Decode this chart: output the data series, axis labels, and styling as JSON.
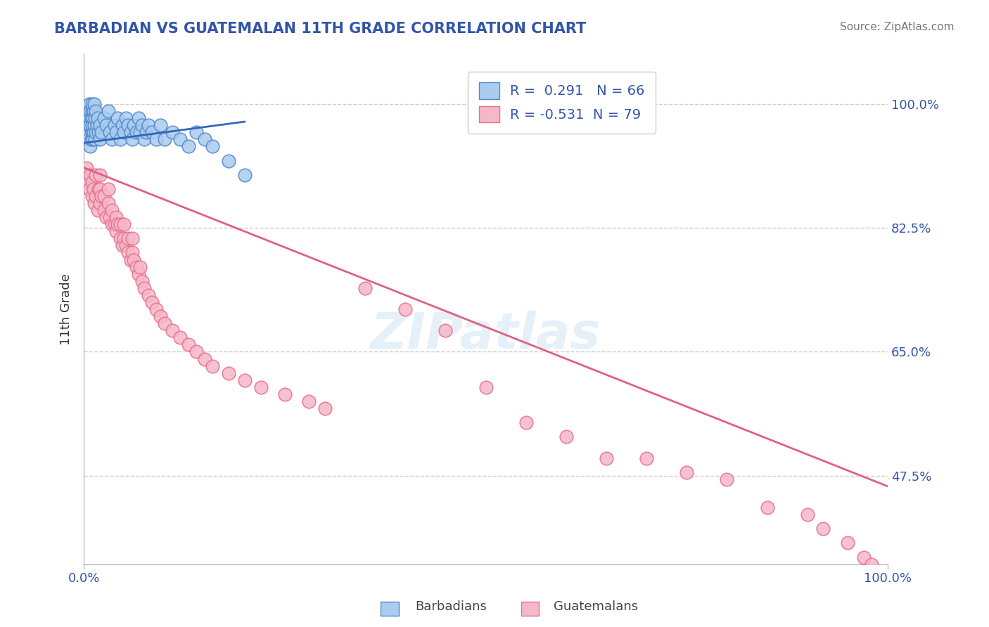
{
  "title": "BARBADIAN VS GUATEMALAN 11TH GRADE CORRELATION CHART",
  "source_text": "Source: ZipAtlas.com",
  "ylabel": "11th Grade",
  "y_ticks": [
    47.5,
    65.0,
    82.5,
    100.0
  ],
  "y_tick_labels": [
    "47.5%",
    "65.0%",
    "82.5%",
    "100.0%"
  ],
  "x_range": [
    0.0,
    100.0
  ],
  "y_range": [
    35.0,
    107.0
  ],
  "blue_R": 0.291,
  "blue_N": 66,
  "pink_R": -0.531,
  "pink_N": 79,
  "blue_color": "#aaccee",
  "blue_edge_color": "#5588cc",
  "pink_color": "#f5b8c8",
  "pink_edge_color": "#e87090",
  "blue_line_color": "#3366bb",
  "pink_line_color": "#e06080",
  "blue_scatter_x": [
    0.3,
    0.5,
    0.5,
    0.6,
    0.7,
    0.7,
    0.8,
    0.8,
    0.8,
    0.9,
    0.9,
    1.0,
    1.0,
    1.0,
    1.0,
    1.1,
    1.1,
    1.2,
    1.2,
    1.3,
    1.3,
    1.4,
    1.4,
    1.5,
    1.5,
    1.6,
    1.7,
    1.8,
    2.0,
    2.0,
    2.2,
    2.5,
    2.8,
    3.0,
    3.2,
    3.5,
    3.8,
    4.0,
    4.2,
    4.5,
    4.8,
    5.0,
    5.2,
    5.5,
    5.8,
    6.0,
    6.2,
    6.5,
    6.8,
    7.0,
    7.2,
    7.5,
    7.8,
    8.0,
    8.5,
    9.0,
    9.5,
    10.0,
    11.0,
    12.0,
    13.0,
    14.0,
    15.0,
    16.0,
    18.0,
    20.0
  ],
  "blue_scatter_y": [
    96,
    97,
    99,
    95,
    98,
    100,
    94,
    97,
    99,
    95,
    98,
    96,
    97,
    99,
    100,
    95,
    98,
    96,
    99,
    97,
    100,
    95,
    98,
    96,
    99,
    97,
    98,
    96,
    95,
    97,
    96,
    98,
    97,
    99,
    96,
    95,
    97,
    96,
    98,
    95,
    97,
    96,
    98,
    97,
    96,
    95,
    97,
    96,
    98,
    96,
    97,
    95,
    96,
    97,
    96,
    95,
    97,
    95,
    96,
    95,
    94,
    96,
    95,
    94,
    92,
    90
  ],
  "pink_scatter_x": [
    0.3,
    0.5,
    0.7,
    0.8,
    1.0,
    1.0,
    1.2,
    1.3,
    1.5,
    1.5,
    1.7,
    1.8,
    2.0,
    2.0,
    2.0,
    2.2,
    2.5,
    2.5,
    2.8,
    3.0,
    3.0,
    3.2,
    3.5,
    3.5,
    3.8,
    4.0,
    4.0,
    4.2,
    4.5,
    4.5,
    4.8,
    5.0,
    5.0,
    5.2,
    5.5,
    5.5,
    5.8,
    6.0,
    6.0,
    6.2,
    6.5,
    6.8,
    7.0,
    7.2,
    7.5,
    8.0,
    8.5,
    9.0,
    9.5,
    10.0,
    11.0,
    12.0,
    13.0,
    14.0,
    15.0,
    16.0,
    18.0,
    20.0,
    22.0,
    25.0,
    28.0,
    30.0,
    35.0,
    40.0,
    45.0,
    50.0,
    55.0,
    60.0,
    65.0,
    70.0,
    75.0,
    80.0,
    85.0,
    90.0,
    92.0,
    95.0,
    97.0,
    98.0,
    99.0
  ],
  "pink_scatter_y": [
    91,
    89,
    88,
    90,
    87,
    89,
    88,
    86,
    87,
    90,
    85,
    88,
    86,
    88,
    90,
    87,
    85,
    87,
    84,
    86,
    88,
    84,
    83,
    85,
    83,
    82,
    84,
    83,
    81,
    83,
    80,
    81,
    83,
    80,
    79,
    81,
    78,
    79,
    81,
    78,
    77,
    76,
    77,
    75,
    74,
    73,
    72,
    71,
    70,
    69,
    68,
    67,
    66,
    65,
    64,
    63,
    62,
    61,
    60,
    59,
    58,
    57,
    74,
    71,
    68,
    60,
    55,
    53,
    50,
    50,
    48,
    47,
    43,
    42,
    40,
    38,
    36,
    35,
    33
  ],
  "blue_trend_x": [
    0.0,
    20.0
  ],
  "blue_trend_y": [
    94.5,
    97.5
  ],
  "pink_trend_x": [
    0.0,
    100.0
  ],
  "pink_trend_y": [
    91.0,
    46.0
  ],
  "watermark_text": "ZIPatlas",
  "title_color": "#3355aa",
  "tick_label_color": "#3355aa"
}
